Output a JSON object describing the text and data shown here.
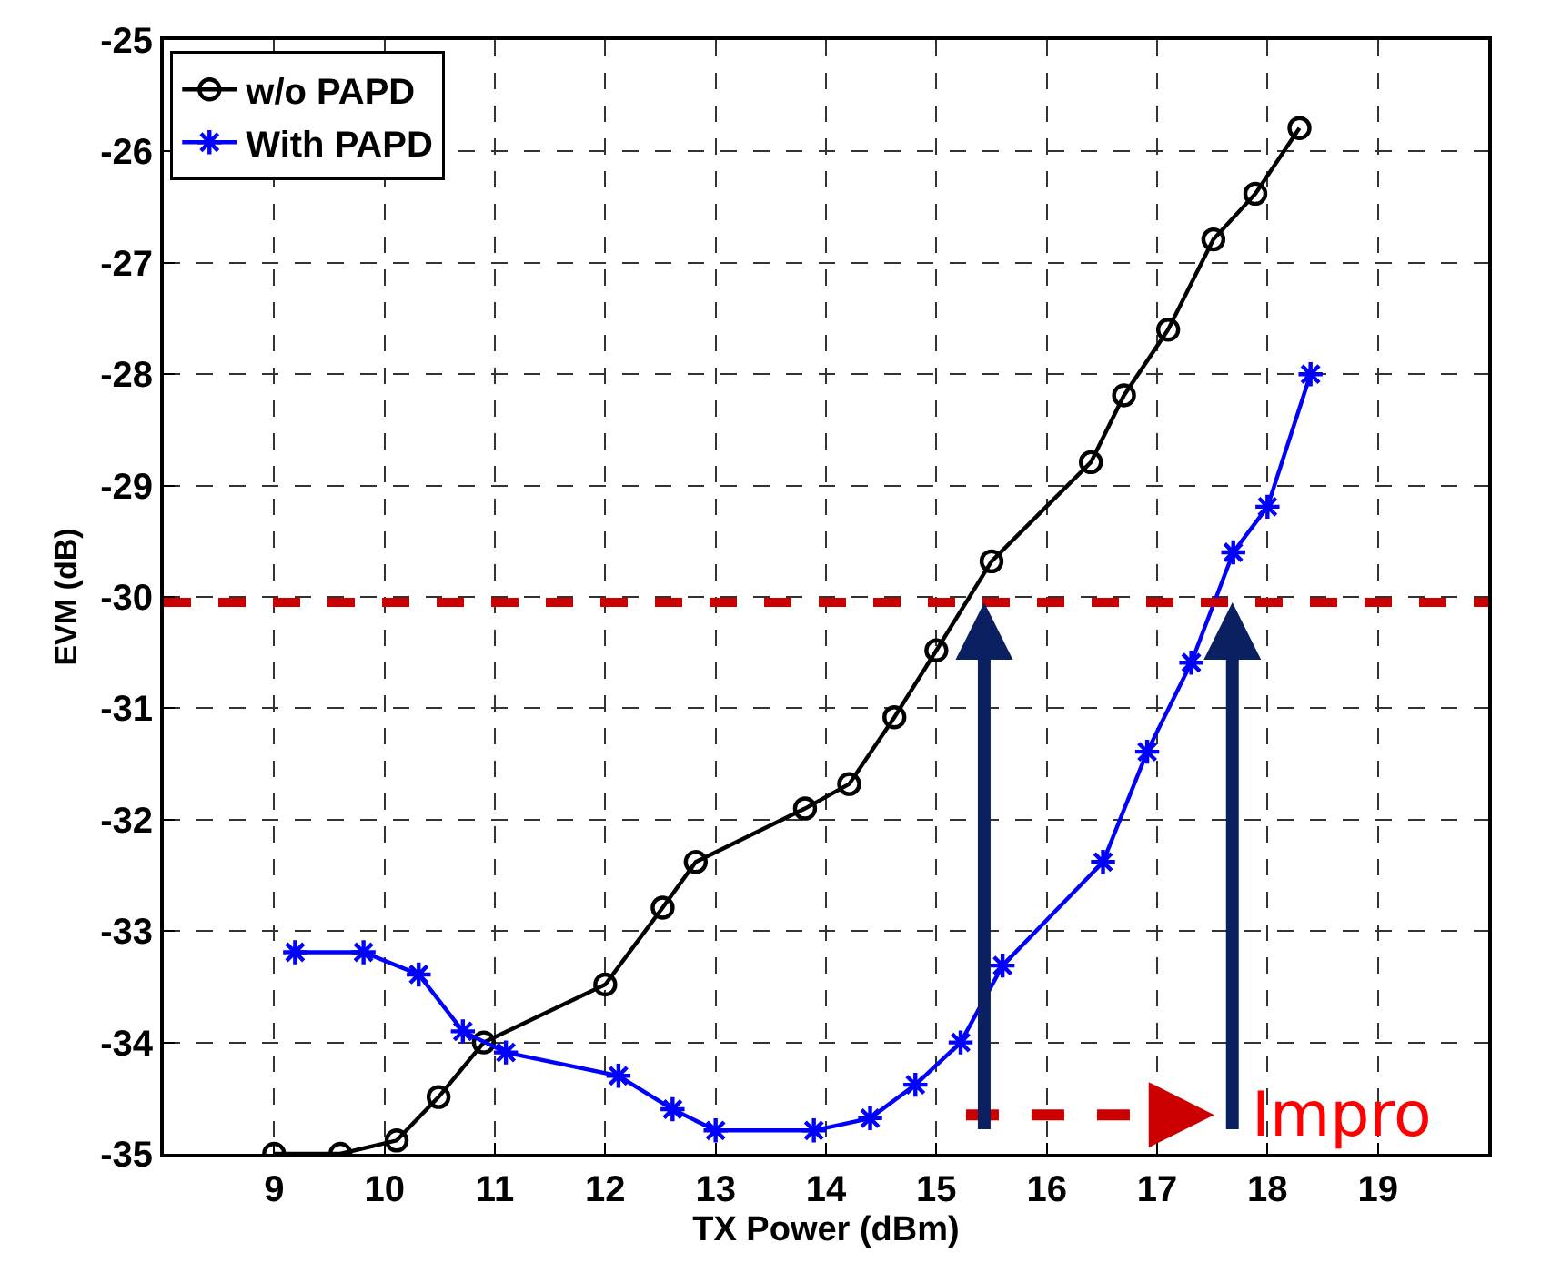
{
  "chart_data": {
    "type": "line",
    "xlabel": "TX Power (dBm)",
    "ylabel": "EVM (dB)",
    "xlim": [
      8,
      20
    ],
    "xticks": [
      9,
      10,
      11,
      12,
      13,
      14,
      15,
      16,
      17,
      18,
      19
    ],
    "ylim": [
      -35,
      -25
    ],
    "yticks": [
      -35,
      -34,
      -33,
      -32,
      -31,
      -30,
      -29,
      -28,
      -27,
      -26,
      -25
    ],
    "grid": true,
    "legend": "top left",
    "line_style": "solid",
    "series": [
      {
        "name": "w/o PAPD",
        "color": "#000000",
        "marker": "circle",
        "x": [
          9.0,
          9.6,
          10.11,
          10.49,
          10.9,
          12.0,
          12.52,
          12.82,
          13.81,
          14.21,
          14.62,
          15.0,
          15.5,
          16.4,
          16.7,
          17.1,
          17.51,
          17.89,
          18.29
        ],
        "values": [
          -35.0,
          -35.0,
          -34.88,
          -34.49,
          -34.0,
          -33.48,
          -32.79,
          -32.38,
          -31.9,
          -31.68,
          -31.08,
          -30.48,
          -29.68,
          -28.79,
          -28.19,
          -27.6,
          -26.79,
          -26.38,
          -25.79
        ]
      },
      {
        "name": "With PAPD",
        "color": "#0000ff",
        "marker": "cross",
        "x": [
          9.19,
          9.81,
          10.31,
          10.71,
          11.1,
          12.12,
          12.61,
          13.0,
          13.89,
          14.4,
          14.81,
          15.22,
          15.6,
          16.51,
          16.91,
          17.31,
          17.69,
          18.0,
          18.39
        ],
        "values": [
          -33.19,
          -33.19,
          -33.39,
          -33.9,
          -34.09,
          -34.3,
          -34.6,
          -34.79,
          -34.79,
          -34.68,
          -34.38,
          -34.0,
          -33.31,
          -32.38,
          -31.39,
          -30.59,
          -29.6,
          -29.19,
          -28.0
        ]
      }
    ],
    "ref_lines": [
      {
        "axis": "y",
        "value": -30.05,
        "color": "#cc0000",
        "line_style": "dashed"
      }
    ],
    "annotations": [
      "Impro"
    ]
  }
}
